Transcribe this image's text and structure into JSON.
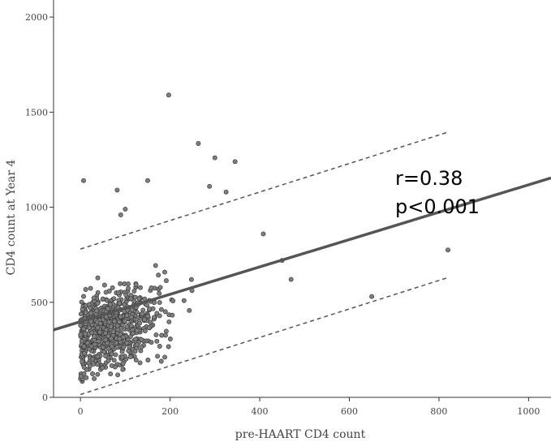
{
  "chart_data": {
    "type": "scatter",
    "xlabel": "pre-HAART CD4 count",
    "ylabel": "CD4 count at Year 4",
    "xlim": [
      -60,
      1050
    ],
    "ylim": [
      0,
      2090
    ],
    "x_ticks": [
      0,
      200,
      400,
      600,
      800,
      1000
    ],
    "y_ticks": [
      0,
      500,
      1000,
      1500,
      2000
    ],
    "grid": false,
    "annotations": [
      "r=0.38",
      "p<0.001"
    ],
    "regression": {
      "slope": 0.72,
      "intercept": 398,
      "x_range": [
        -60,
        1050
      ]
    },
    "prediction_interval": {
      "x_range": [
        0,
        820
      ],
      "upper_intercept": 780,
      "lower_intercept": 15,
      "slope": 0.75
    },
    "point_color": "#7f7f7f",
    "line_color": "#555555",
    "outliers": [
      [
        197,
        1590
      ],
      [
        263,
        1335
      ],
      [
        300,
        1260
      ],
      [
        345,
        1240
      ],
      [
        150,
        1140
      ],
      [
        7,
        1140
      ],
      [
        288,
        1110
      ],
      [
        82,
        1090
      ],
      [
        325,
        1080
      ],
      [
        100,
        990
      ],
      [
        90,
        960
      ],
      [
        820,
        775
      ],
      [
        650,
        530
      ],
      [
        470,
        620
      ],
      [
        450,
        720
      ],
      [
        408,
        860
      ]
    ],
    "points_generated": 720
  }
}
